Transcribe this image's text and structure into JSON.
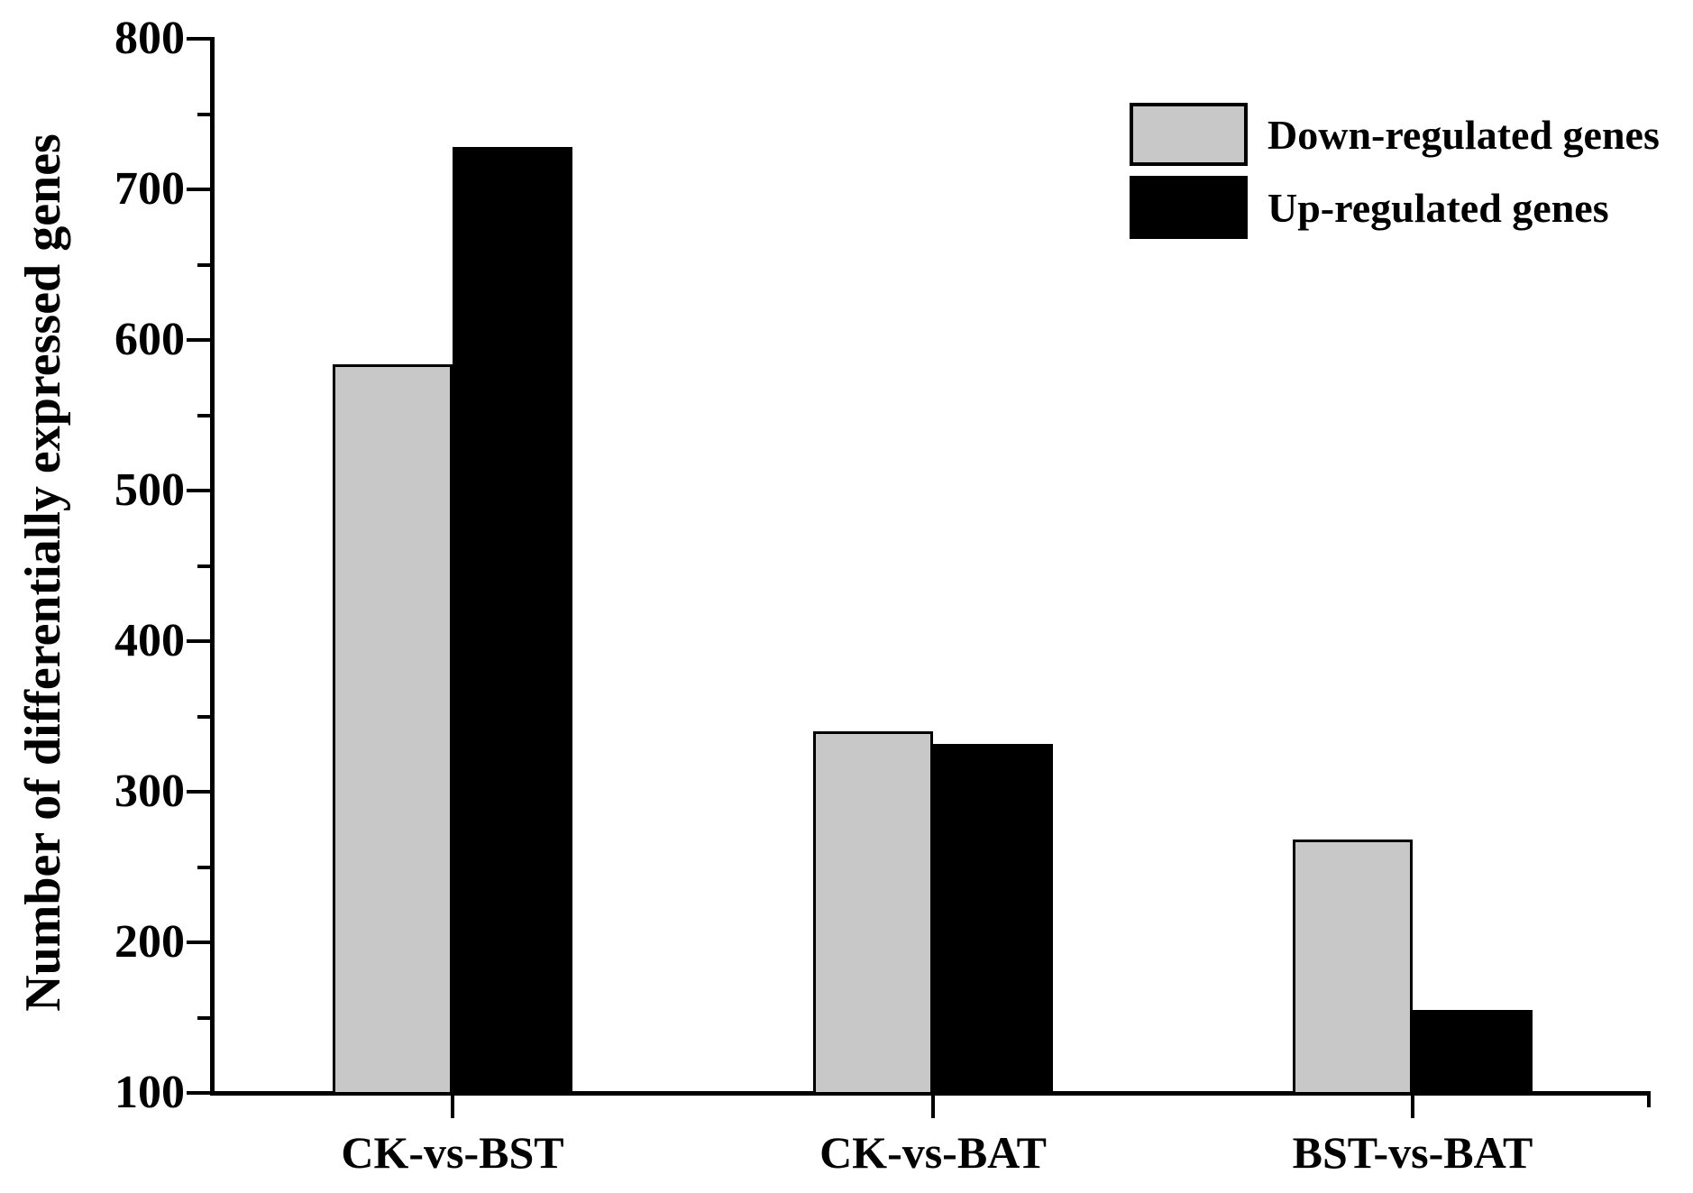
{
  "figure": {
    "background_color": "#ffffff",
    "axis_color": "#000000",
    "text_color": "#000000"
  },
  "chart_data": {
    "type": "bar",
    "title": "",
    "xlabel": "",
    "ylabel": "Number of differentially expressed genes",
    "categories": [
      "CK-vs-BST",
      "CK-vs-BAT",
      "BST-vs-BAT"
    ],
    "series": [
      {
        "name": "Down-regulated genes",
        "color": "#c8c8c8",
        "values": [
          584,
          340,
          268
        ]
      },
      {
        "name": "Up-regulated genes",
        "color": "#000000",
        "values": [
          728,
          332,
          155
        ]
      }
    ],
    "ylim": [
      100,
      800
    ],
    "y_major_ticks": [
      100,
      200,
      300,
      400,
      500,
      600,
      700,
      800
    ],
    "y_minor_tick_step": 50,
    "grid": false,
    "legend_position": "top-right",
    "bar_border_color": "#000000"
  }
}
